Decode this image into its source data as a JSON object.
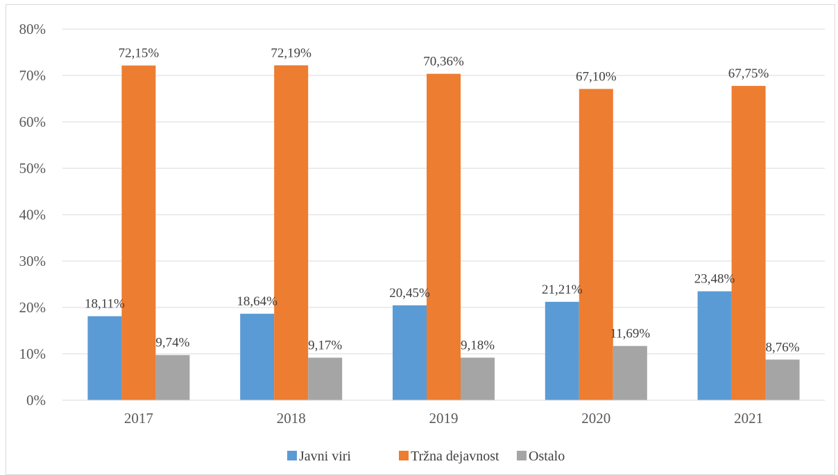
{
  "chart_data": {
    "type": "bar",
    "title": "",
    "xlabel": "",
    "ylabel": "",
    "categories": [
      "2017",
      "2018",
      "2019",
      "2020",
      "2021"
    ],
    "series": [
      {
        "name": "Javni viri",
        "color": "#5b9bd5",
        "values": [
          18.11,
          18.64,
          20.45,
          21.21,
          23.48
        ],
        "labels": [
          "18,11%",
          "18,64%",
          "20,45%",
          "21,21%",
          "23,48%"
        ]
      },
      {
        "name": "Tržna dejavnost",
        "color": "#ed7d31",
        "values": [
          72.15,
          72.19,
          70.36,
          67.1,
          67.75
        ],
        "labels": [
          "72,15%",
          "72,19%",
          "70,36%",
          "67,10%",
          "67,75%"
        ]
      },
      {
        "name": "Ostalo",
        "color": "#a5a5a5",
        "values": [
          9.74,
          9.17,
          9.18,
          11.69,
          8.76
        ],
        "labels": [
          "9,74%",
          "9,17%",
          "9,18%",
          "11,69%",
          "8,76%"
        ]
      }
    ],
    "ylim": [
      0,
      80
    ],
    "yticks": [
      0,
      10,
      20,
      30,
      40,
      50,
      60,
      70,
      80
    ],
    "ytick_labels": [
      "0%",
      "10%",
      "20%",
      "30%",
      "40%",
      "50%",
      "60%",
      "70%",
      "80%"
    ],
    "grid": true,
    "legend_position": "bottom-center"
  }
}
